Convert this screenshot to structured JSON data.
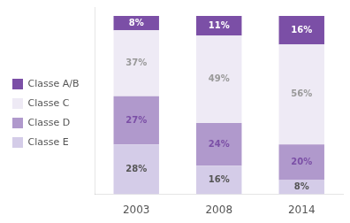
{
  "chart_data": {
    "type": "bar",
    "stacked": true,
    "categories": [
      "2003",
      "2008",
      "2014"
    ],
    "series": [
      {
        "name": "Classe E",
        "color": "#d4cce8",
        "values": [
          28,
          16,
          8
        ],
        "value_labels": [
          "28%",
          "16%",
          "8%"
        ]
      },
      {
        "name": "Classe D",
        "color": "#b099cc",
        "values": [
          27,
          24,
          20
        ],
        "value_labels": [
          "27%",
          "24%",
          "20%"
        ]
      },
      {
        "name": "Classe C",
        "color": "#eeeaf5",
        "values": [
          37,
          49,
          56
        ],
        "value_labels": [
          "37%",
          "49%",
          "56%"
        ]
      },
      {
        "name": "Classe A/B",
        "color": "#7b4fa6",
        "values": [
          8,
          11,
          16
        ],
        "value_labels": [
          "8%",
          "11%",
          "16%"
        ]
      }
    ],
    "ylim": [
      0,
      105
    ],
    "yticks": [],
    "grid": false,
    "legend": "left",
    "data_labels": true,
    "tick_labels": "x"
  }
}
